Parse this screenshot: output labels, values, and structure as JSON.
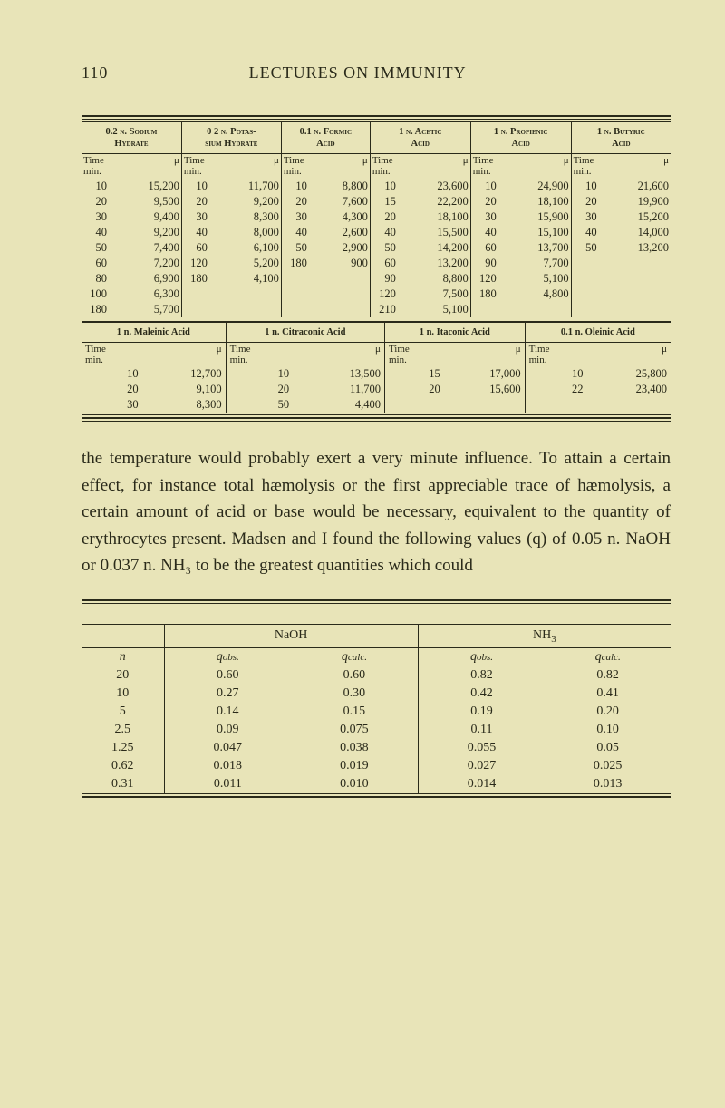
{
  "page_number": "110",
  "running_head": "LECTURES ON IMMUNITY",
  "colors": {
    "background": "#e8e4b8",
    "ink": "#2a2a1a"
  },
  "wide_table": {
    "groups": [
      {
        "head": "0.2 n. Sodium\nHydrate",
        "time_label": "Time\nmin.",
        "mu": "μ",
        "rows": [
          [
            "10",
            "15,200"
          ],
          [
            "20",
            "9,500"
          ],
          [
            "30",
            "9,400"
          ],
          [
            "40",
            "9,200"
          ],
          [
            "50",
            "7,400"
          ],
          [
            "60",
            "7,200"
          ],
          [
            "80",
            "6,900"
          ],
          [
            "100",
            "6,300"
          ],
          [
            "180",
            "5,700"
          ]
        ]
      },
      {
        "head": "0 2 n. Potas-\nsium Hydrate",
        "time_label": "Time\nmin.",
        "mu": "μ",
        "rows": [
          [
            "10",
            "11,700"
          ],
          [
            "20",
            "9,200"
          ],
          [
            "30",
            "8,300"
          ],
          [
            "40",
            "8,000"
          ],
          [
            "60",
            "6,100"
          ],
          [
            "120",
            "5,200"
          ],
          [
            "180",
            "4,100"
          ]
        ]
      },
      {
        "head": "0.1 n. Formic\nAcid",
        "time_label": "Time\nmin.",
        "mu": "μ",
        "rows": [
          [
            "10",
            "8,800"
          ],
          [
            "20",
            "7,600"
          ],
          [
            "30",
            "4,300"
          ],
          [
            "40",
            "2,600"
          ],
          [
            "50",
            "2,900"
          ],
          [
            "180",
            "900"
          ]
        ]
      },
      {
        "head": "1 n. Acetic\nAcid",
        "time_label": "Time\nmin.",
        "mu": "μ",
        "rows": [
          [
            "10",
            "23,600"
          ],
          [
            "15",
            "22,200"
          ],
          [
            "20",
            "18,100"
          ],
          [
            "40",
            "15,500"
          ],
          [
            "50",
            "14,200"
          ],
          [
            "60",
            "13,200"
          ],
          [
            "90",
            "8,800"
          ],
          [
            "120",
            "7,500"
          ],
          [
            "210",
            "5,100"
          ]
        ]
      },
      {
        "head": "1 n. Propienic\nAcid",
        "time_label": "Time\nmin.",
        "mu": "μ",
        "rows": [
          [
            "10",
            "24,900"
          ],
          [
            "20",
            "18,100"
          ],
          [
            "30",
            "15,900"
          ],
          [
            "40",
            "15,100"
          ],
          [
            "60",
            "13,700"
          ],
          [
            "90",
            "7,700"
          ],
          [
            "120",
            "5,100"
          ],
          [
            "180",
            "4,800"
          ]
        ]
      },
      {
        "head": "1 n. Butyric\nAcid",
        "time_label": "Time\nmin.",
        "mu": "μ",
        "rows": [
          [
            "10",
            "21,600"
          ],
          [
            "20",
            "19,900"
          ],
          [
            "30",
            "15,200"
          ],
          [
            "40",
            "14,000"
          ],
          [
            "50",
            "13,200"
          ]
        ]
      }
    ]
  },
  "four_table": {
    "groups": [
      {
        "head": "1 n. Maleinic Acid",
        "time_label": "Time\nmin.",
        "mu": "μ",
        "rows": [
          [
            "10",
            "12,700"
          ],
          [
            "20",
            "9,100"
          ],
          [
            "30",
            "8,300"
          ]
        ]
      },
      {
        "head": "1 n. Citraconic Acid",
        "time_label": "Time\nmin.",
        "mu": "μ",
        "rows": [
          [
            "10",
            "13,500"
          ],
          [
            "20",
            "11,700"
          ],
          [
            "50",
            "4,400"
          ]
        ]
      },
      {
        "head": "1 n. Itaconic Acid",
        "time_label": "Time\nmin.",
        "mu": "μ",
        "rows": [
          [
            "15",
            "17,000"
          ],
          [
            "20",
            "15,600"
          ]
        ]
      },
      {
        "head": "0.1 n. Oleinic Acid",
        "time_label": "Time\nmin.",
        "mu": "μ",
        "rows": [
          [
            "10",
            "25,800"
          ],
          [
            "22",
            "23,400"
          ]
        ]
      }
    ]
  },
  "body_text": "the temperature would probably exert a very minute influence. To attain a certain effect, for instance total hæmolysis or the first appreciable trace of hæmolysis, a certain amount of acid or base would be necessary, equivalent to the quantity of erythrocytes present. Madsen and I found the following values (q) of 0.05 n. NaOH or 0.037 n. NH₃ to be the greatest quantities which could",
  "bottom_table": {
    "left_head": "NaOH",
    "right_head": "NH₃",
    "n_label": "n",
    "qobs": "qobs.",
    "qcalc": "qcalc.",
    "rows": [
      {
        "n": "20",
        "a": "0.60",
        "b": "0.60",
        "c": "0.82",
        "d": "0.82"
      },
      {
        "n": "10",
        "a": "0.27",
        "b": "0.30",
        "c": "0.42",
        "d": "0.41"
      },
      {
        "n": "5",
        "a": "0.14",
        "b": "0.15",
        "c": "0.19",
        "d": "0.20"
      },
      {
        "n": "2.5",
        "a": "0.09",
        "b": "0.075",
        "c": "0.11",
        "d": "0.10"
      },
      {
        "n": "1.25",
        "a": "0.047",
        "b": "0.038",
        "c": "0.055",
        "d": "0.05"
      },
      {
        "n": "0.62",
        "a": "0.018",
        "b": "0.019",
        "c": "0.027",
        "d": "0.025"
      },
      {
        "n": "0.31",
        "a": "0.011",
        "b": "0.010",
        "c": "0.014",
        "d": "0.013"
      }
    ]
  }
}
